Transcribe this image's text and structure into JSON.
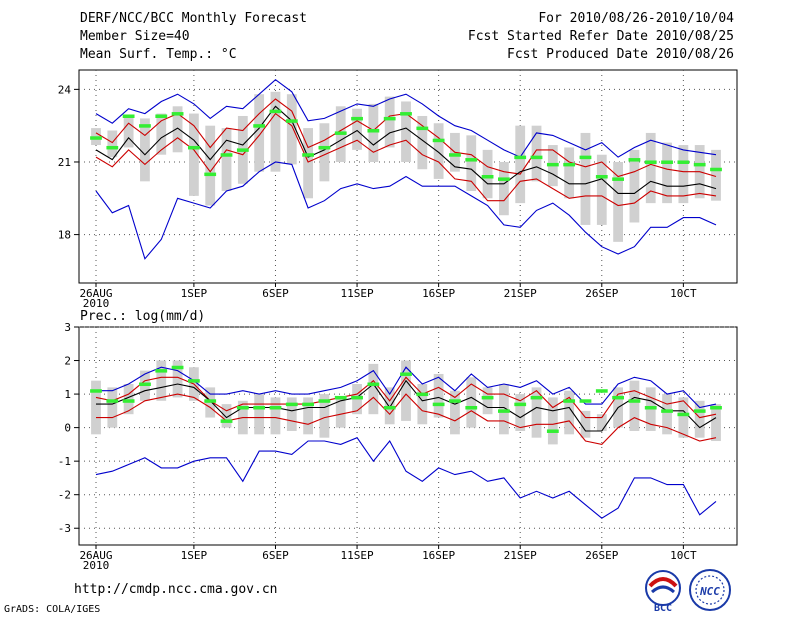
{
  "header": {
    "title": "DERF/NCC/BCC Monthly Forecast",
    "member_size": "Member Size=40",
    "variable": "Mean Surf. Temp.: °C",
    "period": "For 2010/08/26-2010/10/04",
    "refer_date": "Fcst Started Refer Date 2010/08/25",
    "produced_date": "Fcst Produced Date 2010/08/26"
  },
  "footer": {
    "url": "http://cmdp.ncc.cma.gov.cn",
    "credit": "GrADS: COLA/IGES",
    "logo_left_text": "BCC",
    "logo_right_text": "NCC"
  },
  "colors": {
    "envelope": "#0000cc",
    "std": "#cc0000",
    "mean": "#000000",
    "box": "#d0d0d0",
    "marker": "#33ee33"
  },
  "chart_data": [
    {
      "type": "line",
      "title": "",
      "ylabel": "Mean Surf. Temp. °C",
      "ylim": [
        16.0,
        24.8
      ],
      "yticks": [
        18,
        21,
        24
      ],
      "x_days": 39,
      "xticks": [
        {
          "day": 0,
          "label": "26AUG",
          "sub": "2010"
        },
        {
          "day": 6,
          "label": "1SEP",
          "sub": ""
        },
        {
          "day": 11,
          "label": "6SEP",
          "sub": ""
        },
        {
          "day": 16,
          "label": "11SEP",
          "sub": ""
        },
        {
          "day": 21,
          "label": "16SEP",
          "sub": ""
        },
        {
          "day": 26,
          "label": "21SEP",
          "sub": ""
        },
        {
          "day": 31,
          "label": "26SEP",
          "sub": ""
        },
        {
          "day": 36,
          "label": "10CT",
          "sub": ""
        }
      ],
      "series": [
        {
          "name": "max",
          "role": "envelope",
          "values": [
            23.0,
            22.6,
            23.2,
            23.0,
            23.5,
            23.8,
            23.4,
            22.8,
            23.3,
            23.2,
            23.8,
            24.4,
            23.9,
            22.7,
            22.8,
            23.1,
            23.4,
            23.3,
            23.6,
            23.8,
            23.4,
            22.9,
            22.5,
            22.3,
            21.9,
            21.5,
            21.2,
            22.2,
            22.1,
            21.8,
            21.5,
            21.8,
            21.2,
            21.6,
            21.9,
            21.7,
            21.5,
            21.4,
            21.3
          ]
        },
        {
          "name": "mean+std",
          "role": "std",
          "values": [
            22.2,
            21.8,
            22.6,
            22.1,
            22.7,
            23.0,
            22.5,
            21.6,
            22.4,
            22.3,
            23.0,
            23.6,
            23.1,
            21.6,
            21.9,
            22.3,
            22.7,
            22.3,
            22.9,
            23.0,
            22.5,
            22.0,
            21.4,
            21.3,
            20.8,
            20.6,
            20.5,
            21.5,
            21.5,
            21.0,
            20.8,
            21.0,
            20.4,
            20.6,
            20.9,
            20.7,
            20.6,
            20.6,
            20.4
          ]
        },
        {
          "name": "mean",
          "role": "mean",
          "values": [
            21.5,
            21.1,
            22.0,
            21.3,
            22.0,
            22.4,
            21.9,
            21.1,
            21.9,
            21.7,
            22.4,
            23.3,
            22.7,
            21.2,
            21.5,
            21.9,
            22.3,
            21.7,
            22.2,
            22.4,
            21.9,
            21.4,
            20.8,
            20.7,
            20.1,
            20.1,
            20.6,
            20.8,
            20.5,
            20.1,
            20.1,
            20.3,
            19.7,
            19.7,
            20.2,
            20.0,
            20.0,
            20.1,
            19.9
          ]
        },
        {
          "name": "mean-std",
          "role": "std",
          "values": [
            21.2,
            20.8,
            21.5,
            20.9,
            21.5,
            22.0,
            21.5,
            20.6,
            21.5,
            21.3,
            22.1,
            23.0,
            22.5,
            21.0,
            21.3,
            21.6,
            21.9,
            21.4,
            21.7,
            21.9,
            21.3,
            21.0,
            20.3,
            20.2,
            19.4,
            19.4,
            20.2,
            20.3,
            19.9,
            19.5,
            19.6,
            19.6,
            19.2,
            19.3,
            19.8,
            19.6,
            19.6,
            19.7,
            19.6
          ]
        },
        {
          "name": "min",
          "role": "envelope",
          "values": [
            19.8,
            18.9,
            19.2,
            17.0,
            17.8,
            19.5,
            19.3,
            19.1,
            19.8,
            20.0,
            20.6,
            21.0,
            20.9,
            19.1,
            19.4,
            19.9,
            20.1,
            19.9,
            20.0,
            20.4,
            20.0,
            20.0,
            20.0,
            19.6,
            19.2,
            18.4,
            18.3,
            19.0,
            19.3,
            18.8,
            18.1,
            17.5,
            17.2,
            17.5,
            18.3,
            18.3,
            18.7,
            18.7,
            18.4
          ]
        }
      ],
      "box_low": [
        21.7,
        21.2,
        21.6,
        20.2,
        21.3,
        21.4,
        19.6,
        19.2,
        19.8,
        20.1,
        20.6,
        20.6,
        20.9,
        19.5,
        20.2,
        21.0,
        21.5,
        21.0,
        21.6,
        21.0,
        20.7,
        20.3,
        20.6,
        19.8,
        19.5,
        18.8,
        19.3,
        20.2,
        20.0,
        19.5,
        18.4,
        18.4,
        17.7,
        18.5,
        19.3,
        19.3,
        19.3,
        19.5,
        19.4
      ],
      "box_high": [
        22.4,
        22.3,
        22.9,
        22.8,
        23.0,
        23.3,
        23.0,
        22.5,
        22.4,
        22.9,
        23.8,
        23.9,
        23.8,
        22.4,
        22.6,
        23.3,
        23.2,
        23.4,
        23.7,
        23.5,
        22.9,
        22.6,
        22.2,
        22.1,
        21.5,
        21.0,
        22.5,
        22.5,
        21.7,
        21.6,
        22.2,
        21.3,
        21.0,
        21.5,
        22.2,
        21.8,
        21.7,
        21.7,
        21.5
      ],
      "markers": [
        22.0,
        21.6,
        22.9,
        22.5,
        22.9,
        23.0,
        21.6,
        20.5,
        21.3,
        21.5,
        22.5,
        23.1,
        22.7,
        21.3,
        21.6,
        22.2,
        22.8,
        22.3,
        22.8,
        23.0,
        22.4,
        21.9,
        21.3,
        21.1,
        20.4,
        20.3,
        21.2,
        21.2,
        20.9,
        20.9,
        21.2,
        20.4,
        20.3,
        21.1,
        21.0,
        21.0,
        21.0,
        20.9,
        20.7
      ]
    },
    {
      "type": "line",
      "title": "Prec.: log(mm/d)",
      "ylabel": "Prec.: log(mm/d)",
      "ylim": [
        -3.5,
        3.0
      ],
      "yticks": [
        3,
        2,
        1,
        0,
        -1,
        -2,
        -3
      ],
      "x_days": 39,
      "xticks": [
        {
          "day": 0,
          "label": "26AUG",
          "sub": "2010"
        },
        {
          "day": 6,
          "label": "1SEP",
          "sub": ""
        },
        {
          "day": 11,
          "label": "6SEP",
          "sub": ""
        },
        {
          "day": 16,
          "label": "11SEP",
          "sub": ""
        },
        {
          "day": 21,
          "label": "16SEP",
          "sub": ""
        },
        {
          "day": 26,
          "label": "21SEP",
          "sub": ""
        },
        {
          "day": 31,
          "label": "26SEP",
          "sub": ""
        },
        {
          "day": 36,
          "label": "10CT",
          "sub": ""
        }
      ],
      "series": [
        {
          "name": "max",
          "role": "envelope",
          "values": [
            1.1,
            1.1,
            1.3,
            1.6,
            1.8,
            1.7,
            1.4,
            1.0,
            1.0,
            1.1,
            1.0,
            1.1,
            1.0,
            1.0,
            1.1,
            1.2,
            1.4,
            1.7,
            1.0,
            1.8,
            1.3,
            1.5,
            1.1,
            1.6,
            1.2,
            1.3,
            1.2,
            1.4,
            1.0,
            1.2,
            0.7,
            0.7,
            1.3,
            1.5,
            1.4,
            1.0,
            1.1,
            0.6,
            0.7,
            1.1
          ]
        },
        {
          "name": "mean+std",
          "role": "std",
          "values": [
            0.9,
            0.8,
            1.0,
            1.4,
            1.5,
            1.5,
            1.3,
            0.8,
            0.5,
            0.7,
            0.7,
            0.7,
            0.7,
            0.7,
            0.8,
            0.9,
            1.0,
            1.4,
            0.8,
            1.5,
            1.0,
            1.2,
            0.9,
            1.3,
            1.0,
            1.0,
            0.8,
            1.1,
            0.6,
            0.9,
            0.3,
            0.3,
            1.0,
            1.1,
            0.9,
            0.7,
            0.8,
            0.3,
            0.4,
            0.6
          ]
        },
        {
          "name": "mean",
          "role": "mean",
          "values": [
            0.7,
            0.7,
            0.9,
            1.1,
            1.2,
            1.3,
            1.2,
            0.8,
            0.3,
            0.6,
            0.6,
            0.6,
            0.5,
            0.6,
            0.6,
            0.8,
            0.9,
            1.3,
            0.6,
            1.4,
            0.8,
            0.9,
            0.7,
            0.9,
            0.6,
            0.6,
            0.3,
            0.6,
            0.5,
            0.6,
            -0.1,
            -0.1,
            0.6,
            0.9,
            0.8,
            0.5,
            0.5,
            0.0,
            0.3,
            0.4
          ]
        },
        {
          "name": "mean-std",
          "role": "std",
          "values": [
            0.3,
            0.3,
            0.5,
            0.8,
            0.9,
            1.0,
            0.9,
            0.6,
            0.2,
            0.3,
            0.3,
            0.3,
            0.2,
            0.1,
            0.3,
            0.4,
            0.5,
            0.9,
            0.4,
            1.0,
            0.5,
            0.4,
            0.2,
            0.5,
            0.2,
            0.2,
            0.0,
            0.1,
            0.1,
            0.2,
            -0.4,
            -0.5,
            0.0,
            0.3,
            0.1,
            0.0,
            -0.2,
            -0.4,
            -0.3,
            -0.2
          ]
        },
        {
          "name": "min",
          "role": "envelope",
          "values": [
            -1.4,
            -1.3,
            -1.1,
            -0.9,
            -1.2,
            -1.2,
            -1.0,
            -0.9,
            -0.9,
            -1.6,
            -0.7,
            -0.7,
            -0.8,
            -0.4,
            -0.4,
            -0.5,
            -0.3,
            -1.0,
            -0.4,
            -1.3,
            -1.6,
            -1.2,
            -1.4,
            -1.3,
            -1.6,
            -1.5,
            -2.1,
            -1.9,
            -2.1,
            -1.9,
            -2.3,
            -2.7,
            -2.4,
            -1.5,
            -1.5,
            -1.7,
            -1.7,
            -2.6,
            -2.2,
            -2.4,
            -2.3
          ]
        },
        {
          "name": "placeholder",
          "role": "hidden",
          "values": []
        }
      ],
      "box_low": [
        -0.2,
        0.0,
        0.4,
        0.8,
        0.8,
        0.9,
        0.8,
        0.3,
        0.0,
        -0.2,
        -0.2,
        -0.2,
        -0.1,
        -0.2,
        -0.3,
        0.0,
        0.4,
        0.4,
        0.1,
        0.2,
        0.1,
        0.3,
        -0.2,
        0.0,
        0.4,
        -0.2,
        -0.1,
        -0.3,
        -0.5,
        -0.2,
        -0.3,
        -0.1,
        0.0,
        -0.1,
        -0.1,
        -0.2,
        -0.3,
        -0.3,
        -0.4
      ],
      "box_high": [
        1.4,
        1.2,
        1.3,
        1.7,
        2.0,
        2.0,
        1.8,
        1.2,
        0.7,
        0.8,
        1.0,
        0.9,
        0.9,
        0.9,
        1.0,
        0.9,
        1.3,
        1.9,
        1.2,
        2.0,
        1.3,
        1.6,
        1.1,
        1.5,
        1.2,
        1.3,
        1.0,
        1.2,
        0.9,
        1.1,
        0.5,
        0.4,
        1.2,
        1.4,
        1.2,
        1.0,
        0.9,
        0.8,
        0.7
      ],
      "markers": [
        1.1,
        0.8,
        0.8,
        1.3,
        1.7,
        1.8,
        1.4,
        0.8,
        0.2,
        0.6,
        0.6,
        0.6,
        0.7,
        0.7,
        0.8,
        0.9,
        0.9,
        1.3,
        0.6,
        1.6,
        1.0,
        0.7,
        0.8,
        0.6,
        0.9,
        0.5,
        0.7,
        0.9,
        -0.1,
        0.8,
        0.8,
        1.1,
        0.9,
        0.8,
        0.6,
        0.5,
        0.4,
        0.5,
        0.6
      ]
    }
  ]
}
